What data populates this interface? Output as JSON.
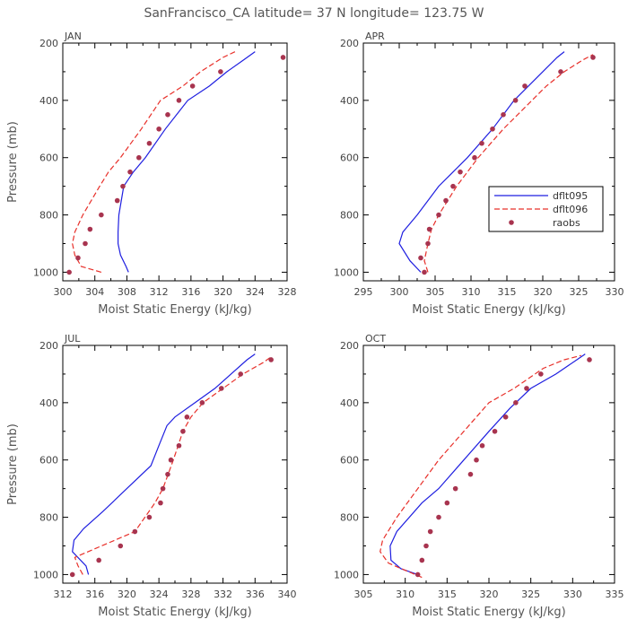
{
  "title": "SanFrancisco_CA  latitude= 37 N longitude= 123.75 W",
  "colors": {
    "dflt095": "#1f1fe0",
    "dflt096": "#e8302a",
    "raobs": "#a8344f",
    "axis": "#000000",
    "text": "#555555"
  },
  "chart_data": [
    {
      "type": "line",
      "panel": "JAN",
      "xlabel": "Moist Static Energy (kJ/kg)",
      "ylabel": "Pressure (mb)",
      "xlim": [
        300,
        328
      ],
      "ylim": [
        1030,
        200
      ],
      "xticks": [
        300,
        304,
        308,
        312,
        316,
        320,
        324,
        328
      ],
      "yticks": [
        200,
        400,
        600,
        800,
        1000
      ],
      "series": [
        {
          "name": "dflt095",
          "style": "solid",
          "points": [
            [
              308.2,
              1000
            ],
            [
              307.9,
              980
            ],
            [
              307.2,
              940
            ],
            [
              306.9,
              900
            ],
            [
              306.9,
              860
            ],
            [
              307.0,
              800
            ],
            [
              307.6,
              700
            ],
            [
              308.8,
              650
            ],
            [
              310.3,
              600
            ],
            [
              312.8,
              500
            ],
            [
              315.6,
              400
            ],
            [
              318.3,
              350
            ],
            [
              320.5,
              300
            ],
            [
              322.5,
              260
            ],
            [
              324.0,
              230
            ]
          ]
        },
        {
          "name": "dflt096",
          "style": "dashed",
          "points": [
            [
              304.8,
              1000
            ],
            [
              302.3,
              980
            ],
            [
              301.5,
              940
            ],
            [
              301.2,
              900
            ],
            [
              301.5,
              860
            ],
            [
              302.5,
              800
            ],
            [
              304.6,
              700
            ],
            [
              305.7,
              650
            ],
            [
              307.2,
              600
            ],
            [
              309.8,
              500
            ],
            [
              312.2,
              400
            ],
            [
              315.0,
              350
            ],
            [
              317.2,
              300
            ],
            [
              320.0,
              250
            ],
            [
              321.5,
              230
            ]
          ]
        },
        {
          "name": "raobs",
          "style": "markers",
          "points": [
            [
              300.8,
              1000
            ],
            [
              301.9,
              950
            ],
            [
              302.8,
              900
            ],
            [
              303.4,
              850
            ],
            [
              304.8,
              800
            ],
            [
              306.8,
              750
            ],
            [
              307.5,
              700
            ],
            [
              308.4,
              650
            ],
            [
              309.5,
              600
            ],
            [
              310.8,
              550
            ],
            [
              312.0,
              500
            ],
            [
              313.1,
              450
            ],
            [
              314.5,
              400
            ],
            [
              316.2,
              350
            ],
            [
              319.7,
              300
            ],
            [
              327.5,
              250
            ]
          ]
        }
      ]
    },
    {
      "type": "line",
      "panel": "APR",
      "xlabel": "Moist Static Energy (kJ/kg)",
      "ylabel": "",
      "xlim": [
        295,
        330
      ],
      "ylim": [
        1030,
        200
      ],
      "xticks": [
        295,
        300,
        305,
        310,
        315,
        320,
        325,
        330
      ],
      "yticks": [
        200,
        400,
        600,
        800,
        1000
      ],
      "legend": {
        "position": "right-middle",
        "entries": [
          "dflt095",
          "dflt096",
          "raobs"
        ]
      },
      "series": [
        {
          "name": "dflt095",
          "style": "solid",
          "points": [
            [
              303.0,
              1000
            ],
            [
              301.5,
              960
            ],
            [
              300.0,
              900
            ],
            [
              300.5,
              860
            ],
            [
              302.5,
              800
            ],
            [
              305.5,
              700
            ],
            [
              307.5,
              650
            ],
            [
              309.5,
              600
            ],
            [
              313.0,
              500
            ],
            [
              316.0,
              400
            ],
            [
              318.0,
              350
            ],
            [
              320.0,
              300
            ],
            [
              322.0,
              250
            ],
            [
              323.0,
              230
            ]
          ]
        },
        {
          "name": "dflt096",
          "style": "dashed",
          "points": [
            [
              304.0,
              1000
            ],
            [
              303.5,
              960
            ],
            [
              304.0,
              900
            ],
            [
              304.5,
              850
            ],
            [
              305.5,
              800
            ],
            [
              308.0,
              700
            ],
            [
              309.5,
              650
            ],
            [
              311.0,
              600
            ],
            [
              314.5,
              500
            ],
            [
              318.5,
              400
            ],
            [
              320.5,
              350
            ],
            [
              323.0,
              300
            ],
            [
              325.5,
              260
            ],
            [
              327.0,
              240
            ]
          ]
        },
        {
          "name": "raobs",
          "style": "markers",
          "points": [
            [
              303.5,
              1000
            ],
            [
              303.0,
              950
            ],
            [
              304.0,
              900
            ],
            [
              304.2,
              850
            ],
            [
              305.5,
              800
            ],
            [
              306.5,
              750
            ],
            [
              307.5,
              700
            ],
            [
              308.5,
              650
            ],
            [
              310.5,
              600
            ],
            [
              311.5,
              550
            ],
            [
              313.0,
              500
            ],
            [
              314.5,
              450
            ],
            [
              316.2,
              400
            ],
            [
              317.5,
              350
            ],
            [
              322.5,
              300
            ],
            [
              327.0,
              250
            ]
          ]
        }
      ]
    },
    {
      "type": "line",
      "panel": "JUL",
      "xlabel": "Moist Static Energy (kJ/kg)",
      "ylabel": "Pressure (mb)",
      "xlim": [
        312,
        340
      ],
      "ylim": [
        1030,
        200
      ],
      "xticks": [
        312,
        316,
        320,
        324,
        328,
        332,
        336,
        340
      ],
      "yticks": [
        200,
        400,
        600,
        800,
        1000
      ],
      "series": [
        {
          "name": "dflt095",
          "style": "solid",
          "points": [
            [
              315.2,
              1000
            ],
            [
              314.9,
              970
            ],
            [
              313.2,
              920
            ],
            [
              313.4,
              880
            ],
            [
              314.6,
              840
            ],
            [
              317.0,
              780
            ],
            [
              320.0,
              700
            ],
            [
              323.0,
              620
            ],
            [
              324.0,
              550
            ],
            [
              325.0,
              480
            ],
            [
              326.0,
              450
            ],
            [
              328.5,
              400
            ],
            [
              331.0,
              350
            ],
            [
              333.0,
              300
            ],
            [
              335.0,
              250
            ],
            [
              336.0,
              230
            ]
          ]
        },
        {
          "name": "dflt096",
          "style": "dashed",
          "points": [
            [
              314.5,
              1000
            ],
            [
              313.9,
              970
            ],
            [
              313.5,
              940
            ],
            [
              316.0,
              910
            ],
            [
              321.0,
              850
            ],
            [
              323.5,
              750
            ],
            [
              324.5,
              700
            ],
            [
              325.8,
              600
            ],
            [
              327.0,
              500
            ],
            [
              328.0,
              450
            ],
            [
              329.5,
              400
            ],
            [
              332.0,
              350
            ],
            [
              334.5,
              300
            ],
            [
              337.0,
              260
            ],
            [
              338.0,
              240
            ]
          ]
        },
        {
          "name": "raobs",
          "style": "markers",
          "points": [
            [
              313.2,
              1000
            ],
            [
              316.5,
              950
            ],
            [
              319.2,
              900
            ],
            [
              321.0,
              850
            ],
            [
              322.8,
              800
            ],
            [
              324.2,
              750
            ],
            [
              324.5,
              700
            ],
            [
              325.1,
              650
            ],
            [
              325.5,
              600
            ],
            [
              326.5,
              550
            ],
            [
              327.0,
              500
            ],
            [
              327.5,
              450
            ],
            [
              329.4,
              400
            ],
            [
              331.8,
              350
            ],
            [
              334.2,
              300
            ],
            [
              338.0,
              250
            ]
          ]
        }
      ]
    },
    {
      "type": "line",
      "panel": "OCT",
      "xlabel": "Moist Static Energy (kJ/kg)",
      "ylabel": "",
      "xlim": [
        305,
        335
      ],
      "ylim": [
        1030,
        200
      ],
      "xticks": [
        305,
        310,
        315,
        320,
        325,
        330,
        335
      ],
      "yticks": [
        200,
        400,
        600,
        800,
        1000
      ],
      "series": [
        {
          "name": "dflt095",
          "style": "solid",
          "points": [
            [
              311.5,
              1000
            ],
            [
              309.5,
              980
            ],
            [
              308.3,
              950
            ],
            [
              308.2,
              900
            ],
            [
              309.0,
              850
            ],
            [
              312.0,
              750
            ],
            [
              314.0,
              700
            ],
            [
              317.0,
              600
            ],
            [
              320.0,
              500
            ],
            [
              322.5,
              420
            ],
            [
              325.0,
              350
            ],
            [
              328.0,
              300
            ],
            [
              330.5,
              250
            ],
            [
              331.5,
              230
            ]
          ]
        },
        {
          "name": "dflt096",
          "style": "dashed",
          "points": [
            [
              312.0,
              1010
            ],
            [
              308.0,
              960
            ],
            [
              307.0,
              920
            ],
            [
              307.3,
              880
            ],
            [
              309.0,
              800
            ],
            [
              311.5,
              700
            ],
            [
              314.0,
              600
            ],
            [
              317.0,
              500
            ],
            [
              320.0,
              400
            ],
            [
              323.0,
              350
            ],
            [
              326.5,
              280
            ],
            [
              329.0,
              250
            ],
            [
              331.0,
              235
            ]
          ]
        },
        {
          "name": "raobs",
          "style": "markers",
          "points": [
            [
              311.5,
              1000
            ],
            [
              312.0,
              950
            ],
            [
              312.5,
              900
            ],
            [
              313.0,
              850
            ],
            [
              314.0,
              800
            ],
            [
              315.0,
              750
            ],
            [
              316.0,
              700
            ],
            [
              317.8,
              650
            ],
            [
              318.5,
              600
            ],
            [
              319.2,
              550
            ],
            [
              320.7,
              500
            ],
            [
              322.0,
              450
            ],
            [
              323.2,
              400
            ],
            [
              324.5,
              350
            ],
            [
              326.2,
              300
            ],
            [
              332.0,
              250
            ]
          ]
        }
      ]
    }
  ]
}
